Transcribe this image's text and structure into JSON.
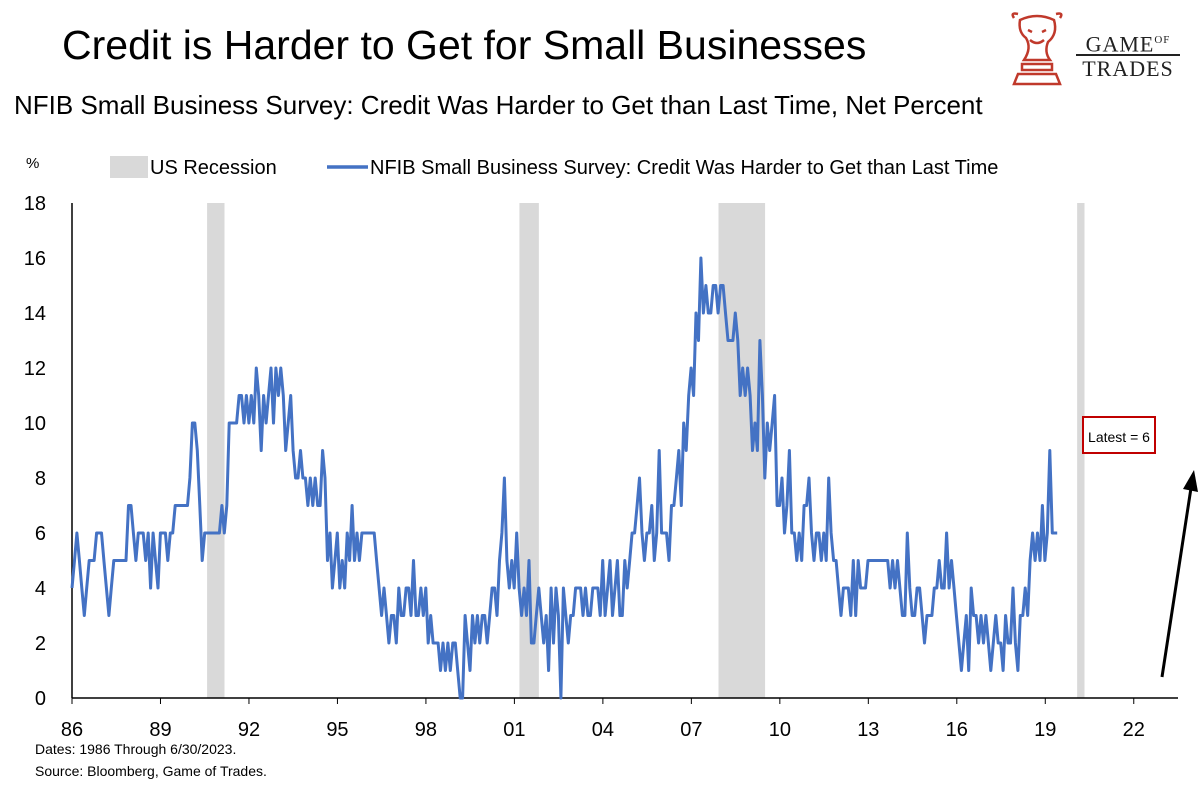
{
  "title": "Credit is Harder to Get for Small Businesses",
  "subtitle": "NFIB Small Business Survey: Credit Was Harder to Get than Last Time, Net Percent",
  "logo": {
    "line1_a": "GAME",
    "line1_b": "OF",
    "line2": "TRADES",
    "icon": "bull-chess-knight-icon"
  },
  "footer": {
    "dates": "Dates: 1986 Through 6/30/2023.",
    "source": "Source: Bloomberg, Game of Trades."
  },
  "annotation": {
    "latest": "Latest = 6"
  },
  "colors": {
    "line": "#4472c4",
    "recession": "#d9d9d9",
    "annotation_border": "#c00000",
    "logo": "#c0392b"
  },
  "chart_data": {
    "type": "line",
    "ylabel": "%",
    "ylim": [
      0,
      18
    ],
    "yticks": [
      0,
      2,
      4,
      6,
      8,
      10,
      12,
      14,
      16,
      18
    ],
    "xlim": [
      1986,
      2023.5
    ],
    "xticks": [
      {
        "value": 1986,
        "label": "86"
      },
      {
        "value": 1989,
        "label": "89"
      },
      {
        "value": 1992,
        "label": "92"
      },
      {
        "value": 1995,
        "label": "95"
      },
      {
        "value": 1998,
        "label": "98"
      },
      {
        "value": 2001,
        "label": "01"
      },
      {
        "value": 2004,
        "label": "04"
      },
      {
        "value": 2007,
        "label": "07"
      },
      {
        "value": 2010,
        "label": "10"
      },
      {
        "value": 2013,
        "label": "13"
      },
      {
        "value": 2016,
        "label": "16"
      },
      {
        "value": 2019,
        "label": "19"
      },
      {
        "value": 2022,
        "label": "22"
      }
    ],
    "grid": false,
    "legend_position": "top",
    "legend": [
      {
        "label": "US Recession",
        "kind": "area"
      },
      {
        "label": "NFIB Small Business Survey: Credit Was Harder to Get than Last Time",
        "kind": "line"
      }
    ],
    "recessions": [
      {
        "start": 1990.58,
        "end": 1991.17
      },
      {
        "start": 2001.17,
        "end": 2001.83
      },
      {
        "start": 2007.92,
        "end": 2009.5
      },
      {
        "start": 2020.08,
        "end": 2020.33
      }
    ],
    "series": [
      {
        "name": "NFIB Small Business Survey: Credit Was Harder to Get than Last Time",
        "x_start": 1986.0,
        "step": 0.0833,
        "values": [
          4,
          5,
          6,
          5,
          4,
          3,
          4,
          5,
          5,
          5,
          6,
          6,
          6,
          5,
          4,
          3,
          4,
          5,
          5,
          5,
          5,
          5,
          5,
          7,
          7,
          6,
          5,
          6,
          6,
          6,
          5,
          6,
          4,
          6,
          5,
          4,
          6,
          6,
          6,
          5,
          6,
          6,
          7,
          7,
          7,
          7,
          7,
          7,
          8,
          10,
          10,
          9,
          7,
          5,
          6,
          6,
          6,
          6,
          6,
          6,
          6,
          7,
          6,
          7,
          10,
          10,
          10,
          10,
          11,
          11,
          10,
          11,
          10,
          11,
          10,
          12,
          11,
          9,
          11,
          10,
          11,
          12,
          10,
          12,
          11,
          12,
          11,
          9,
          10,
          11,
          9,
          8,
          8,
          9,
          8,
          8,
          7,
          8,
          7,
          8,
          7,
          7,
          9,
          8,
          5,
          6,
          4,
          5,
          6,
          4,
          5,
          4,
          6,
          5,
          7,
          5,
          6,
          5,
          6,
          6,
          6,
          6,
          6,
          6,
          5,
          4,
          3,
          4,
          3,
          2,
          3,
          3,
          2,
          4,
          3,
          3,
          4,
          4,
          3,
          5,
          3,
          3,
          4,
          3,
          4,
          2,
          3,
          2,
          2,
          2,
          1,
          2,
          1,
          2,
          1,
          2,
          2,
          1,
          0,
          0,
          3,
          2,
          1,
          3,
          2,
          3,
          2,
          3,
          3,
          2,
          3,
          4,
          4,
          3,
          5,
          6,
          8,
          5,
          4,
          5,
          4,
          6,
          4,
          3,
          4,
          3,
          5,
          2,
          2,
          3,
          4,
          3,
          2,
          3,
          1,
          4,
          2,
          4,
          3,
          0,
          4,
          3,
          2,
          3,
          3,
          4,
          4,
          4,
          3,
          4,
          3,
          3,
          4,
          4,
          4,
          3,
          5,
          3,
          4,
          5,
          3,
          4,
          5,
          3,
          3,
          5,
          4,
          5,
          6,
          6,
          7,
          8,
          6,
          5,
          6,
          6,
          7,
          5,
          6,
          9,
          6,
          6,
          6,
          5,
          7,
          7,
          8,
          9,
          7,
          10,
          9,
          11,
          12,
          11,
          14,
          13,
          16,
          14,
          15,
          14,
          14,
          15,
          15,
          14,
          15,
          15,
          14,
          13,
          13,
          13,
          14,
          13,
          11,
          12,
          11,
          12,
          11,
          9,
          10,
          9,
          13,
          11,
          8,
          10,
          9,
          10,
          11,
          7,
          7,
          8,
          6,
          7,
          9,
          6,
          6,
          5,
          6,
          5,
          7,
          7,
          8,
          6,
          5,
          6,
          6,
          5,
          6,
          5,
          8,
          6,
          5,
          5,
          4,
          3,
          4,
          4,
          4,
          3,
          5,
          3,
          5,
          4,
          4,
          4,
          5,
          5,
          5,
          5,
          5,
          5,
          5,
          5,
          5,
          4,
          5,
          4,
          5,
          4,
          3,
          3,
          6,
          4,
          3,
          3,
          4,
          4,
          3,
          2,
          3,
          3,
          3,
          4,
          4,
          5,
          4,
          4,
          6,
          4,
          5,
          4,
          3,
          2,
          1,
          2,
          3,
          1,
          4,
          3,
          3,
          2,
          3,
          2,
          3,
          2,
          1,
          2,
          3,
          2,
          2,
          1,
          3,
          2,
          2,
          4,
          2,
          1,
          3,
          3,
          4,
          3,
          5,
          6,
          5,
          6,
          5,
          7,
          5,
          6,
          9,
          6,
          6,
          6
        ]
      }
    ]
  }
}
